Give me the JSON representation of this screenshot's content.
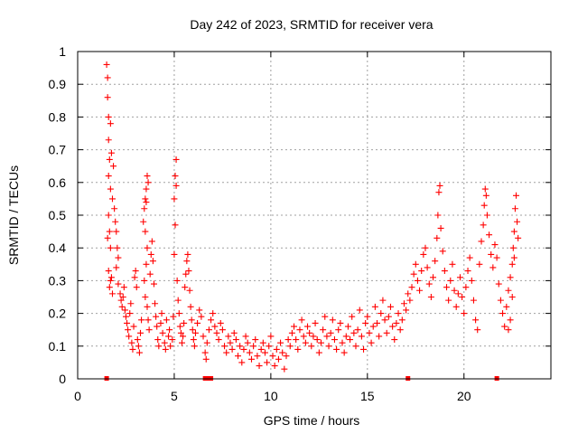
{
  "chart_data": {
    "type": "scatter",
    "title": "Day 242 of 2023, SRMTID for receiver vera",
    "xlabel": "GPS time / hours",
    "ylabel": "SRMTID / TECUs",
    "xlim": [
      0,
      24.5
    ],
    "ylim": [
      0,
      1
    ],
    "x_ticks": [
      0,
      5,
      10,
      15,
      20
    ],
    "x_tick_labels": [
      "0",
      "5",
      "10",
      "15",
      "20"
    ],
    "y_ticks": [
      0,
      0.1,
      0.2,
      0.3,
      0.4,
      0.5,
      0.6,
      0.7,
      0.8,
      0.9,
      1
    ],
    "y_tick_labels": [
      "0",
      "0.1",
      "0.2",
      "0.3",
      "0.4",
      "0.5",
      "0.6",
      "0.7",
      "0.8",
      "0.9",
      "1"
    ],
    "grid": true,
    "color": "#ff0000",
    "marker": "plus",
    "series": [
      {
        "name": "SRMTID",
        "points": [
          [
            1.5,
            0.96
          ],
          [
            1.55,
            0.92
          ],
          [
            1.55,
            0.86
          ],
          [
            1.6,
            0.8
          ],
          [
            1.6,
            0.73
          ],
          [
            1.7,
            0.78
          ],
          [
            1.65,
            0.67
          ],
          [
            1.6,
            0.62
          ],
          [
            1.7,
            0.58
          ],
          [
            1.75,
            0.69
          ],
          [
            1.8,
            0.55
          ],
          [
            1.6,
            0.5
          ],
          [
            1.65,
            0.45
          ],
          [
            1.55,
            0.43
          ],
          [
            1.7,
            0.4
          ],
          [
            1.6,
            0.33
          ],
          [
            1.7,
            0.3
          ],
          [
            1.65,
            0.28
          ],
          [
            1.75,
            0.31
          ],
          [
            1.8,
            0.26
          ],
          [
            1.85,
            0.65
          ],
          [
            1.9,
            0.52
          ],
          [
            1.95,
            0.48
          ],
          [
            2.0,
            0.45
          ],
          [
            2.05,
            0.4
          ],
          [
            2.1,
            0.37
          ],
          [
            2.0,
            0.34
          ],
          [
            2.1,
            0.29
          ],
          [
            2.2,
            0.26
          ],
          [
            2.25,
            0.24
          ],
          [
            2.3,
            0.22
          ],
          [
            2.35,
            0.25
          ],
          [
            2.4,
            0.28
          ],
          [
            2.45,
            0.21
          ],
          [
            2.5,
            0.19
          ],
          [
            2.55,
            0.17
          ],
          [
            2.6,
            0.15
          ],
          [
            2.65,
            0.13
          ],
          [
            2.7,
            0.2
          ],
          [
            2.75,
            0.23
          ],
          [
            2.8,
            0.11
          ],
          [
            2.85,
            0.09
          ],
          [
            2.9,
            0.16
          ],
          [
            2.95,
            0.31
          ],
          [
            3.0,
            0.33
          ],
          [
            3.05,
            0.28
          ],
          [
            3.1,
            0.12
          ],
          [
            3.15,
            0.1
          ],
          [
            3.2,
            0.08
          ],
          [
            3.25,
            0.14
          ],
          [
            3.3,
            0.18
          ],
          [
            3.4,
            0.48
          ],
          [
            3.45,
            0.52
          ],
          [
            3.5,
            0.55
          ],
          [
            3.55,
            0.58
          ],
          [
            3.6,
            0.62
          ],
          [
            3.65,
            0.6
          ],
          [
            3.55,
            0.54
          ],
          [
            3.5,
            0.45
          ],
          [
            3.6,
            0.4
          ],
          [
            3.55,
            0.35
          ],
          [
            3.45,
            0.3
          ],
          [
            3.5,
            0.25
          ],
          [
            3.6,
            0.22
          ],
          [
            3.65,
            0.18
          ],
          [
            3.7,
            0.15
          ],
          [
            3.75,
            0.32
          ],
          [
            3.8,
            0.38
          ],
          [
            3.85,
            0.42
          ],
          [
            3.9,
            0.36
          ],
          [
            3.95,
            0.29
          ],
          [
            4.0,
            0.23
          ],
          [
            4.05,
            0.19
          ],
          [
            4.1,
            0.16
          ],
          [
            4.15,
            0.12
          ],
          [
            4.2,
            0.1
          ],
          [
            4.3,
            0.17
          ],
          [
            4.35,
            0.2
          ],
          [
            4.4,
            0.14
          ],
          [
            4.5,
            0.11
          ],
          [
            4.55,
            0.09
          ],
          [
            4.6,
            0.18
          ],
          [
            4.7,
            0.13
          ],
          [
            4.75,
            0.15
          ],
          [
            4.8,
            0.1
          ],
          [
            4.9,
            0.12
          ],
          [
            4.95,
            0.19
          ],
          [
            5.0,
            0.55
          ],
          [
            5.05,
            0.62
          ],
          [
            5.1,
            0.67
          ],
          [
            5.1,
            0.59
          ],
          [
            5.05,
            0.47
          ],
          [
            5.0,
            0.38
          ],
          [
            5.15,
            0.3
          ],
          [
            5.2,
            0.24
          ],
          [
            5.25,
            0.2
          ],
          [
            5.3,
            0.16
          ],
          [
            5.35,
            0.14
          ],
          [
            5.4,
            0.11
          ],
          [
            5.45,
            0.13
          ],
          [
            5.5,
            0.17
          ],
          [
            5.55,
            0.28
          ],
          [
            5.6,
            0.32
          ],
          [
            5.65,
            0.36
          ],
          [
            5.7,
            0.38
          ],
          [
            5.75,
            0.33
          ],
          [
            5.8,
            0.27
          ],
          [
            5.85,
            0.22
          ],
          [
            5.9,
            0.18
          ],
          [
            5.95,
            0.15
          ],
          [
            6.0,
            0.12
          ],
          [
            6.05,
            0.1
          ],
          [
            6.1,
            0.14
          ],
          [
            6.2,
            0.17
          ],
          [
            6.3,
            0.21
          ],
          [
            6.4,
            0.19
          ],
          [
            6.5,
            0.13
          ],
          [
            6.6,
            0.08
          ],
          [
            6.65,
            0.06
          ],
          [
            6.7,
            0.11
          ],
          [
            6.8,
            0.15
          ],
          [
            6.9,
            0.18
          ],
          [
            7.0,
            0.2
          ],
          [
            7.1,
            0.16
          ],
          [
            7.2,
            0.14
          ],
          [
            7.3,
            0.12
          ],
          [
            7.4,
            0.17
          ],
          [
            7.5,
            0.15
          ],
          [
            7.6,
            0.1
          ],
          [
            7.7,
            0.08
          ],
          [
            7.8,
            0.13
          ],
          [
            7.9,
            0.11
          ],
          [
            8.0,
            0.09
          ],
          [
            8.1,
            0.14
          ],
          [
            8.2,
            0.12
          ],
          [
            8.3,
            0.07
          ],
          [
            8.4,
            0.1
          ],
          [
            8.5,
            0.05
          ],
          [
            8.6,
            0.09
          ],
          [
            8.7,
            0.13
          ],
          [
            8.8,
            0.11
          ],
          [
            8.9,
            0.08
          ],
          [
            9.0,
            0.06
          ],
          [
            9.1,
            0.1
          ],
          [
            9.2,
            0.12
          ],
          [
            9.3,
            0.07
          ],
          [
            9.4,
            0.04
          ],
          [
            9.5,
            0.09
          ],
          [
            9.6,
            0.11
          ],
          [
            9.7,
            0.08
          ],
          [
            9.8,
            0.05
          ],
          [
            9.9,
            0.1
          ],
          [
            10.0,
            0.13
          ],
          [
            10.1,
            0.07
          ],
          [
            10.2,
            0.04
          ],
          [
            10.3,
            0.09
          ],
          [
            10.4,
            0.06
          ],
          [
            10.5,
            0.11
          ],
          [
            10.6,
            0.08
          ],
          [
            10.7,
            0.03
          ],
          [
            10.8,
            0.07
          ],
          [
            10.9,
            0.12
          ],
          [
            11.0,
            0.1
          ],
          [
            11.1,
            0.14
          ],
          [
            11.2,
            0.16
          ],
          [
            11.3,
            0.12
          ],
          [
            11.4,
            0.09
          ],
          [
            11.5,
            0.15
          ],
          [
            11.6,
            0.18
          ],
          [
            11.7,
            0.13
          ],
          [
            11.8,
            0.11
          ],
          [
            11.9,
            0.16
          ],
          [
            12.0,
            0.14
          ],
          [
            12.1,
            0.1
          ],
          [
            12.2,
            0.13
          ],
          [
            12.3,
            0.17
          ],
          [
            12.4,
            0.12
          ],
          [
            12.5,
            0.08
          ],
          [
            12.6,
            0.11
          ],
          [
            12.7,
            0.15
          ],
          [
            12.8,
            0.19
          ],
          [
            12.9,
            0.13
          ],
          [
            13.0,
            0.1
          ],
          [
            13.1,
            0.14
          ],
          [
            13.2,
            0.18
          ],
          [
            13.3,
            0.12
          ],
          [
            13.4,
            0.09
          ],
          [
            13.5,
            0.15
          ],
          [
            13.6,
            0.17
          ],
          [
            13.7,
            0.11
          ],
          [
            13.8,
            0.08
          ],
          [
            13.9,
            0.13
          ],
          [
            14.0,
            0.16
          ],
          [
            14.1,
            0.12
          ],
          [
            14.2,
            0.19
          ],
          [
            14.3,
            0.14
          ],
          [
            14.4,
            0.1
          ],
          [
            14.5,
            0.15
          ],
          [
            14.6,
            0.21
          ],
          [
            14.7,
            0.13
          ],
          [
            14.8,
            0.09
          ],
          [
            14.9,
            0.17
          ],
          [
            15.0,
            0.19
          ],
          [
            15.1,
            0.14
          ],
          [
            15.2,
            0.11
          ],
          [
            15.3,
            0.16
          ],
          [
            15.4,
            0.22
          ],
          [
            15.5,
            0.17
          ],
          [
            15.6,
            0.13
          ],
          [
            15.7,
            0.2
          ],
          [
            15.8,
            0.24
          ],
          [
            15.9,
            0.18
          ],
          [
            16.0,
            0.14
          ],
          [
            16.1,
            0.19
          ],
          [
            16.2,
            0.22
          ],
          [
            16.3,
            0.16
          ],
          [
            16.4,
            0.12
          ],
          [
            16.5,
            0.17
          ],
          [
            16.6,
            0.2
          ],
          [
            16.7,
            0.15
          ],
          [
            16.8,
            0.18
          ],
          [
            16.9,
            0.23
          ],
          [
            17.0,
            0.21
          ],
          [
            17.1,
            0.26
          ],
          [
            17.2,
            0.24
          ],
          [
            17.3,
            0.28
          ],
          [
            17.4,
            0.32
          ],
          [
            17.5,
            0.35
          ],
          [
            17.6,
            0.3
          ],
          [
            17.7,
            0.27
          ],
          [
            17.8,
            0.33
          ],
          [
            17.9,
            0.38
          ],
          [
            18.0,
            0.4
          ],
          [
            18.1,
            0.34
          ],
          [
            18.2,
            0.29
          ],
          [
            18.3,
            0.25
          ],
          [
            18.4,
            0.31
          ],
          [
            18.5,
            0.36
          ],
          [
            18.6,
            0.43
          ],
          [
            18.65,
            0.5
          ],
          [
            18.7,
            0.57
          ],
          [
            18.75,
            0.59
          ],
          [
            18.8,
            0.46
          ],
          [
            18.9,
            0.39
          ],
          [
            19.0,
            0.33
          ],
          [
            19.1,
            0.28
          ],
          [
            19.2,
            0.24
          ],
          [
            19.3,
            0.3
          ],
          [
            19.4,
            0.35
          ],
          [
            19.5,
            0.27
          ],
          [
            19.6,
            0.22
          ],
          [
            19.7,
            0.26
          ],
          [
            19.8,
            0.31
          ],
          [
            19.9,
            0.25
          ],
          [
            20.0,
            0.2
          ],
          [
            20.1,
            0.28
          ],
          [
            20.2,
            0.33
          ],
          [
            20.3,
            0.37
          ],
          [
            20.4,
            0.3
          ],
          [
            20.5,
            0.24
          ],
          [
            20.6,
            0.18
          ],
          [
            20.7,
            0.15
          ],
          [
            20.8,
            0.35
          ],
          [
            20.9,
            0.42
          ],
          [
            21.0,
            0.47
          ],
          [
            21.05,
            0.53
          ],
          [
            21.1,
            0.58
          ],
          [
            21.15,
            0.56
          ],
          [
            21.2,
            0.5
          ],
          [
            21.3,
            0.44
          ],
          [
            21.4,
            0.38
          ],
          [
            21.5,
            0.34
          ],
          [
            21.6,
            0.41
          ],
          [
            21.7,
            0.37
          ],
          [
            21.8,
            0.29
          ],
          [
            21.9,
            0.24
          ],
          [
            22.0,
            0.2
          ],
          [
            22.1,
            0.16
          ],
          [
            22.2,
            0.22
          ],
          [
            22.3,
            0.27
          ],
          [
            22.4,
            0.31
          ],
          [
            22.5,
            0.35
          ],
          [
            22.55,
            0.4
          ],
          [
            22.6,
            0.45
          ],
          [
            22.65,
            0.52
          ],
          [
            22.7,
            0.56
          ],
          [
            22.75,
            0.48
          ],
          [
            22.8,
            0.43
          ],
          [
            22.6,
            0.37
          ],
          [
            22.5,
            0.25
          ],
          [
            22.4,
            0.18
          ],
          [
            22.3,
            0.15
          ]
        ]
      }
    ],
    "baseline_markers_x": [
      1.5,
      6.6,
      6.7,
      6.8,
      6.9,
      17.1,
      21.7
    ]
  }
}
